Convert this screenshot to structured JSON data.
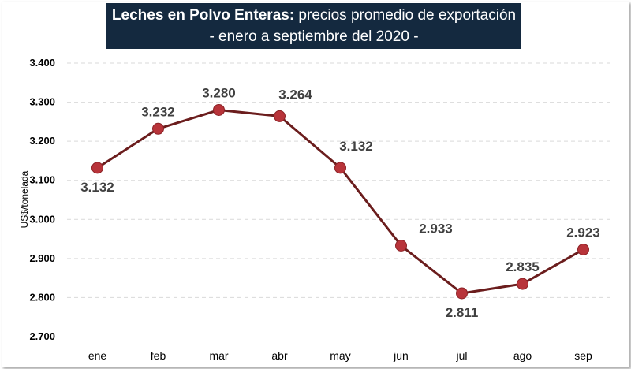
{
  "chart_data": {
    "type": "line",
    "title_bold": "Leches en Polvo Enteras:",
    "title_rest": " precios promedio de exportación",
    "subtitle": "- enero a septiembre del 2020 -",
    "xlabel": "",
    "ylabel": "US$/tonelada",
    "ylim": [
      2700,
      3400
    ],
    "yticks": [
      2700,
      2800,
      2900,
      3000,
      3100,
      3200,
      3300,
      3400
    ],
    "ytick_labels": [
      "2.700",
      "2.800",
      "2.900",
      "3.000",
      "3.100",
      "3.200",
      "3.300",
      "3.400"
    ],
    "categories": [
      "ene",
      "feb",
      "mar",
      "abr",
      "may",
      "jun",
      "jul",
      "ago",
      "sep"
    ],
    "values": [
      3132,
      3232,
      3280,
      3264,
      3132,
      2933,
      2811,
      2835,
      2923
    ],
    "data_labels": [
      "3.132",
      "3.232",
      "3.280",
      "3.264",
      "3.132",
      "2.933",
      "2.811",
      "2.835",
      "2.923"
    ],
    "grid": "horizontal-dashed",
    "legend": "none",
    "line_color": "#6b1d1d",
    "marker_color": "#b8343a",
    "title_bg": "#14293f"
  }
}
